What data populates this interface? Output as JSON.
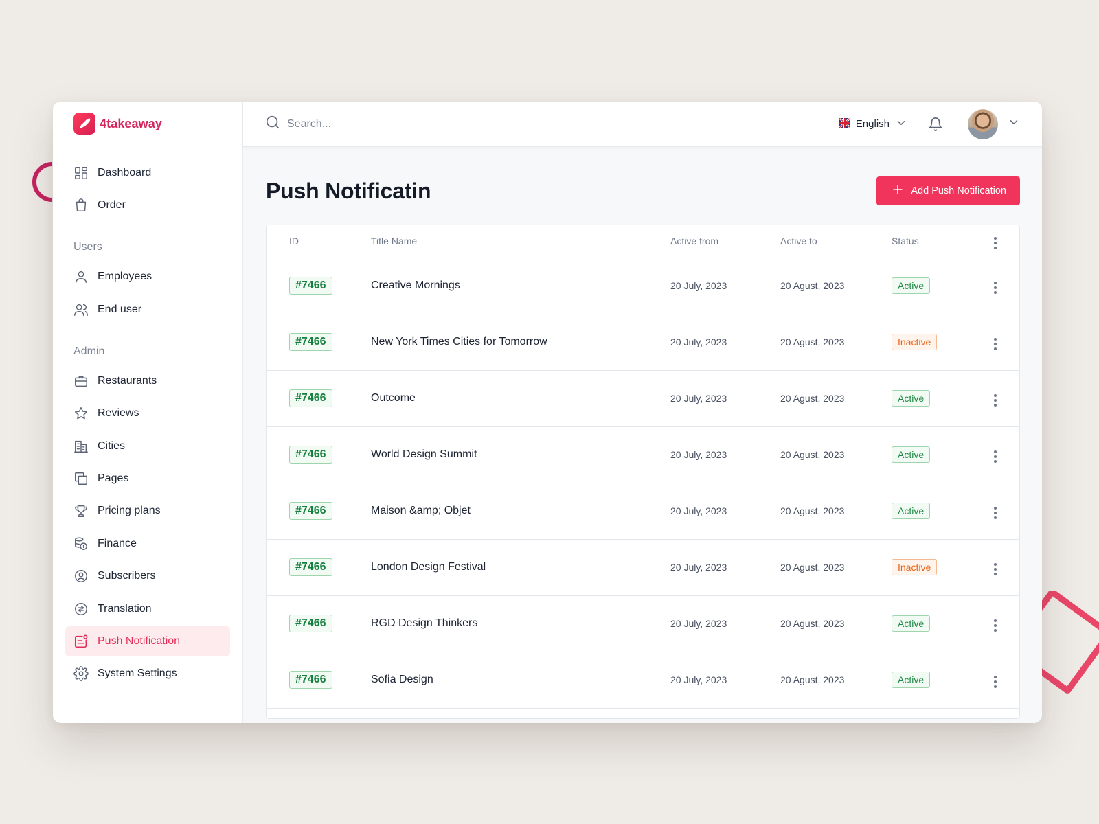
{
  "app": {
    "name": "4takeaway"
  },
  "sidebar": {
    "main_items": [
      {
        "label": "Dashboard",
        "icon": "dashboard-icon"
      },
      {
        "label": "Order",
        "icon": "bag-icon"
      }
    ],
    "sections": [
      {
        "title": "Users",
        "items": [
          {
            "label": "Employees",
            "icon": "user-icon"
          },
          {
            "label": "End user",
            "icon": "users-icon"
          }
        ]
      },
      {
        "title": "Admin",
        "items": [
          {
            "label": "Restaurants",
            "icon": "briefcase-icon"
          },
          {
            "label": "Reviews",
            "icon": "star-icon"
          },
          {
            "label": "Cities",
            "icon": "buildings-icon"
          },
          {
            "label": "Pages",
            "icon": "pages-icon"
          },
          {
            "label": "Pricing plans",
            "icon": "trophy-icon"
          },
          {
            "label": "Finance",
            "icon": "coins-icon"
          },
          {
            "label": "Subscribers",
            "icon": "subscribers-icon"
          },
          {
            "label": "Translation",
            "icon": "translation-icon"
          },
          {
            "label": "Push Notification",
            "icon": "push-notification-icon",
            "active": true
          },
          {
            "label": "System Settings",
            "icon": "gear-icon"
          }
        ]
      }
    ]
  },
  "topbar": {
    "search_placeholder": "Search...",
    "language": "English",
    "language_flag": "uk-flag-icon"
  },
  "page": {
    "title": "Push Notificatin",
    "add_button": "Add Push Notification"
  },
  "table": {
    "headers": {
      "id": "ID",
      "title": "Title Name",
      "from": "Active from",
      "to": "Active to",
      "status": "Status"
    },
    "rows": [
      {
        "id": "#7466",
        "title": "Creative Mornings",
        "from": "20 July, 2023",
        "to": "20 Agust, 2023",
        "status": "Active"
      },
      {
        "id": "#7466",
        "title": "New York Times Cities for Tomorrow",
        "from": "20 July, 2023",
        "to": "20 Agust, 2023",
        "status": "Inactive"
      },
      {
        "id": "#7466",
        "title": "Outcome",
        "from": "20 July, 2023",
        "to": "20 Agust, 2023",
        "status": "Active"
      },
      {
        "id": "#7466",
        "title": "World Design Summit",
        "from": "20 July, 2023",
        "to": "20 Agust, 2023",
        "status": "Active"
      },
      {
        "id": "#7466",
        "title": "Maison &amp; Objet",
        "from": "20 July, 2023",
        "to": "20 Agust, 2023",
        "status": "Active"
      },
      {
        "id": "#7466",
        "title": "London Design Festival",
        "from": "20 July, 2023",
        "to": "20 Agust, 2023",
        "status": "Inactive"
      },
      {
        "id": "#7466",
        "title": "RGD Design Thinkers",
        "from": "20 July, 2023",
        "to": "20 Agust, 2023",
        "status": "Active"
      },
      {
        "id": "#7466",
        "title": "Sofia Design",
        "from": "20 July, 2023",
        "to": "20 Agust, 2023",
        "status": "Active"
      }
    ]
  },
  "colors": {
    "brand": "#d4265a",
    "accent_button": "#f0345c",
    "active_status": "#1f8a45",
    "inactive_status": "#e8661c",
    "id_badge": "#15803d"
  }
}
